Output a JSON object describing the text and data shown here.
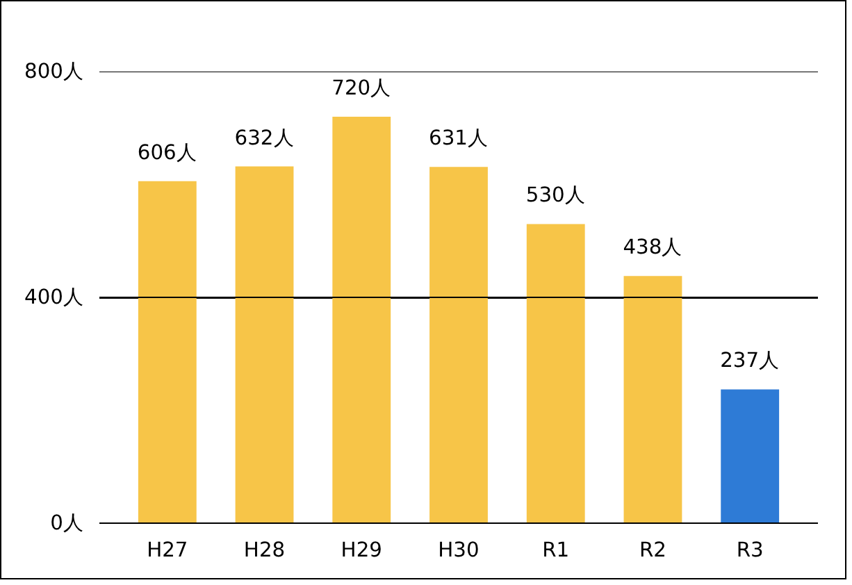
{
  "chart_data": {
    "type": "bar",
    "categories": [
      "H27",
      "H28",
      "H29",
      "H30",
      "R1",
      "R2",
      "R3"
    ],
    "values": [
      606,
      632,
      720,
      631,
      530,
      438,
      237
    ],
    "value_labels": [
      "606人",
      "632人",
      "720人",
      "631人",
      "530人",
      "438人",
      "237人"
    ],
    "colors": [
      "#f7c548",
      "#f7c548",
      "#f7c548",
      "#f7c548",
      "#f7c548",
      "#f7c548",
      "#2e7bd6"
    ],
    "ylim": [
      0,
      800
    ],
    "yticks": [
      {
        "value": 0,
        "label": "0人"
      },
      {
        "value": 400,
        "label": "400人"
      },
      {
        "value": 800,
        "label": "800人"
      }
    ],
    "grid": "y"
  }
}
